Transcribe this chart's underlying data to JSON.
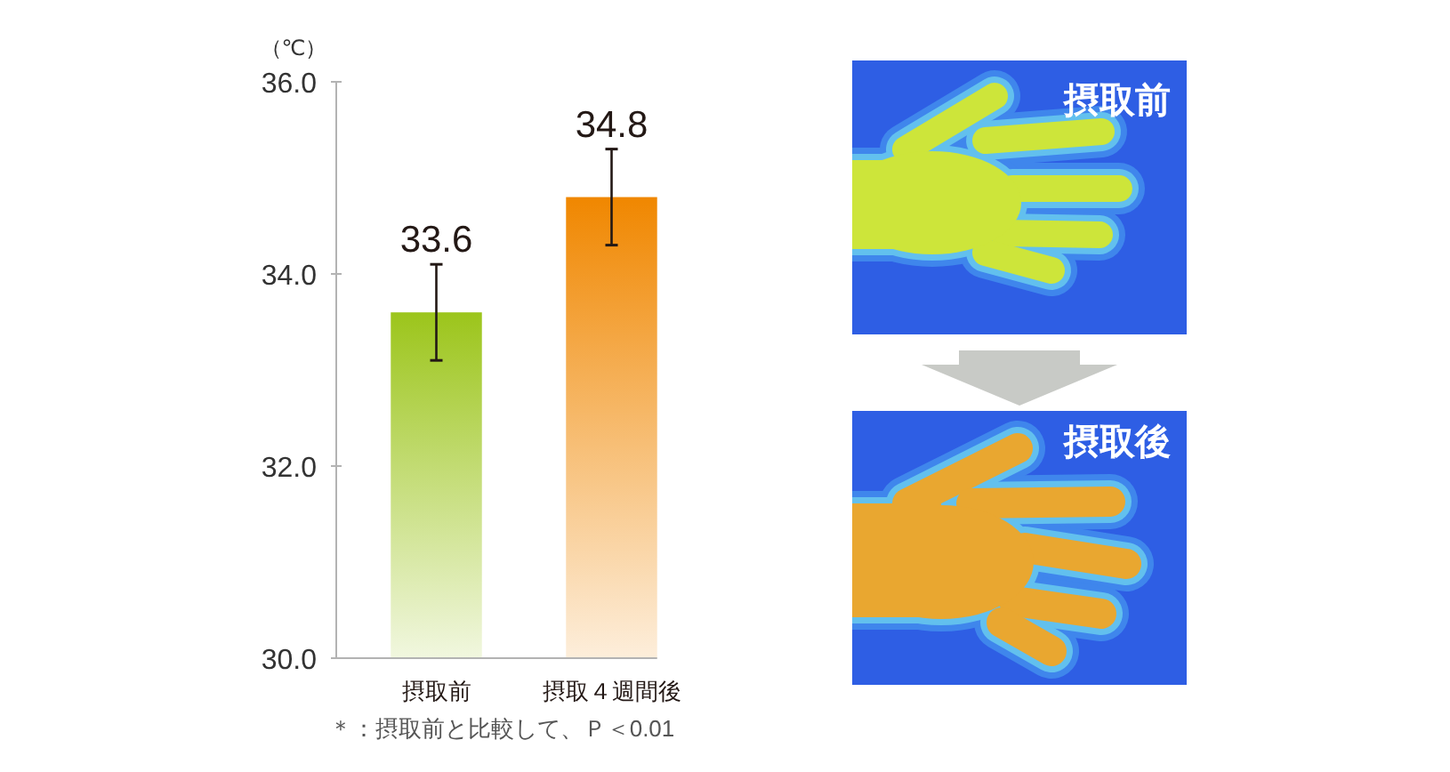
{
  "chart_data": {
    "type": "bar",
    "ylabel": "（℃）",
    "categories": [
      "摂取前",
      "摂取４週間後"
    ],
    "values": [
      33.6,
      34.8
    ],
    "colors": [
      "#9cc51b",
      "#f08700"
    ],
    "errors": [
      0.5,
      0.5
    ],
    "ylim": [
      30,
      36
    ],
    "yticks": [
      {
        "value": 30,
        "label": "30.0"
      },
      {
        "value": 32,
        "label": "32.0"
      },
      {
        "value": 34,
        "label": "34.0"
      },
      {
        "value": 36,
        "label": "36.0"
      }
    ],
    "data_labels": true,
    "annotations": [
      "＊：摂取前と比較して、Ｐ＜0.01",
      "摂取前",
      "摂取後"
    ]
  }
}
